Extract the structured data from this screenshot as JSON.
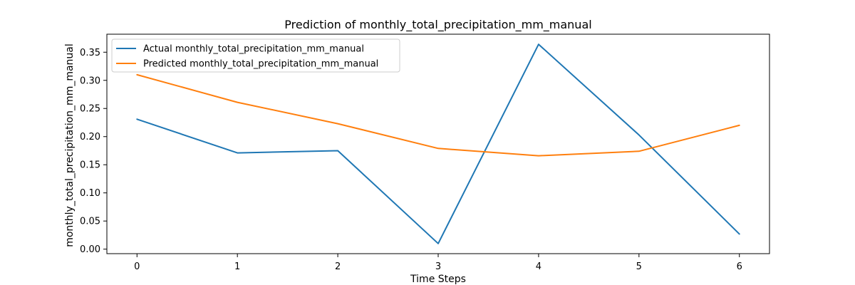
{
  "chart_data": {
    "type": "line",
    "title": "Prediction of monthly_total_precipitation_mm_manual",
    "xlabel": "Time Steps",
    "ylabel": "monthly_total_precipitation_mm_manual",
    "x": [
      0,
      1,
      2,
      3,
      4,
      5,
      6
    ],
    "xlim": [
      -0.3,
      6.3
    ],
    "ylim": [
      -0.008,
      0.382
    ],
    "xticks": [
      "0",
      "1",
      "2",
      "3",
      "4",
      "5",
      "6"
    ],
    "yticks": [
      "0.00",
      "0.05",
      "0.10",
      "0.15",
      "0.20",
      "0.25",
      "0.30",
      "0.35"
    ],
    "grid": false,
    "legend_position": "top-left",
    "series": [
      {
        "name": "Actual monthly_total_precipitation_mm_manual",
        "color": "#1f77b4",
        "values": [
          0.231,
          0.171,
          0.175,
          0.01,
          0.364,
          0.203,
          0.027
        ]
      },
      {
        "name": "Predicted monthly_total_precipitation_mm_manual",
        "color": "#ff7f0e",
        "values": [
          0.31,
          0.261,
          0.223,
          0.179,
          0.166,
          0.174,
          0.22
        ]
      }
    ]
  }
}
